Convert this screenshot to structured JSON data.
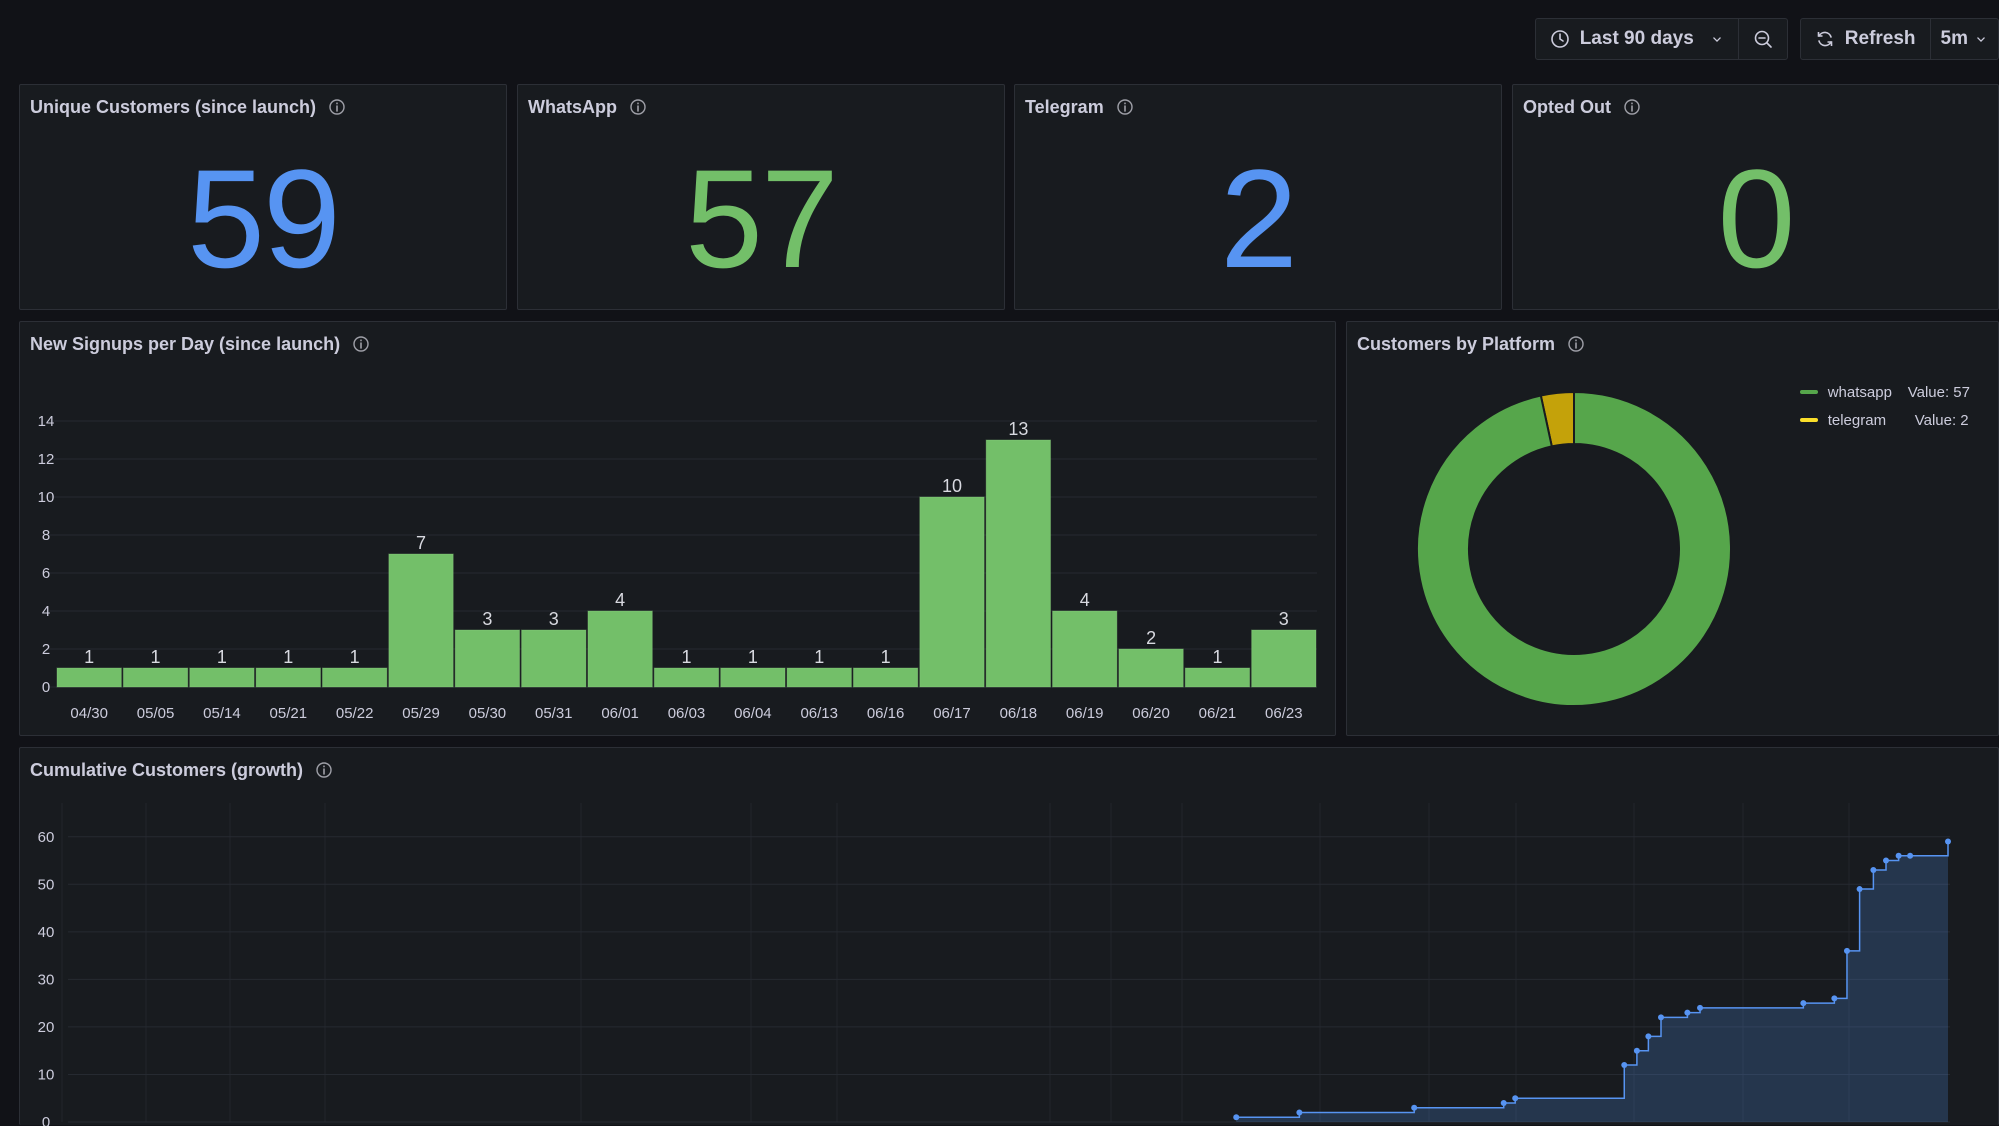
{
  "toolbar": {
    "time_range": "Last 90 days",
    "refresh_label": "Refresh",
    "refresh_interval": "5m"
  },
  "stats": [
    {
      "title": "Unique Customers (since launch)",
      "value": "59",
      "color": "#5794f2"
    },
    {
      "title": "WhatsApp",
      "value": "57",
      "color": "#73bf69"
    },
    {
      "title": "Telegram",
      "value": "2",
      "color": "#5794f2"
    },
    {
      "title": "Opted Out",
      "value": "0",
      "color": "#73bf69"
    }
  ],
  "panels": {
    "signups_title": "New Signups per Day (since launch)",
    "platform_title": "Customers by Platform",
    "cumulative_title": "Cumulative Customers (growth)"
  },
  "legend": [
    {
      "name": "whatsapp",
      "value": "Value: 57",
      "color": "#56a64b"
    },
    {
      "name": "telegram",
      "value": "Value: 2",
      "color": "#fade2a"
    }
  ],
  "chart_data": [
    {
      "type": "bar",
      "title": "New Signups per Day (since launch)",
      "categories": [
        "04/30",
        "05/05",
        "05/14",
        "05/21",
        "05/22",
        "05/29",
        "05/30",
        "05/31",
        "06/01",
        "06/03",
        "06/04",
        "06/13",
        "06/16",
        "06/17",
        "06/18",
        "06/19",
        "06/20",
        "06/21",
        "06/23"
      ],
      "values": [
        1,
        1,
        1,
        1,
        1,
        7,
        3,
        3,
        4,
        1,
        1,
        1,
        1,
        10,
        13,
        4,
        2,
        1,
        3
      ],
      "yticks": [
        0,
        2,
        4,
        6,
        8,
        10,
        12,
        14
      ],
      "ylim": [
        0,
        15
      ],
      "color": "#73bf69",
      "grid": true
    },
    {
      "type": "pie",
      "title": "Customers by Platform",
      "donut": true,
      "labels": [
        "whatsapp",
        "telegram"
      ],
      "values": [
        57,
        2
      ],
      "colors": [
        "#56a64b",
        "#c4a20a"
      ]
    },
    {
      "type": "area",
      "title": "Cumulative Customers (growth)",
      "step": true,
      "yticks": [
        0,
        10,
        20,
        30,
        40,
        50,
        60
      ],
      "ylim": [
        0,
        65
      ],
      "xlim": [
        0,
        100
      ],
      "x": [
        38,
        43.5,
        53.5,
        61.3,
        62.3,
        71.8,
        72.9,
        73.9,
        75,
        77.3,
        78.4,
        87.4,
        90.1,
        91.2,
        92.3,
        93.5,
        94.6,
        95.7,
        96.7,
        100
      ],
      "y": [
        1,
        2,
        3,
        4,
        5,
        12,
        15,
        18,
        22,
        23,
        24,
        25,
        26,
        36,
        49,
        53,
        55,
        56,
        56,
        59
      ],
      "color": "#5794f2",
      "grid": true
    }
  ]
}
